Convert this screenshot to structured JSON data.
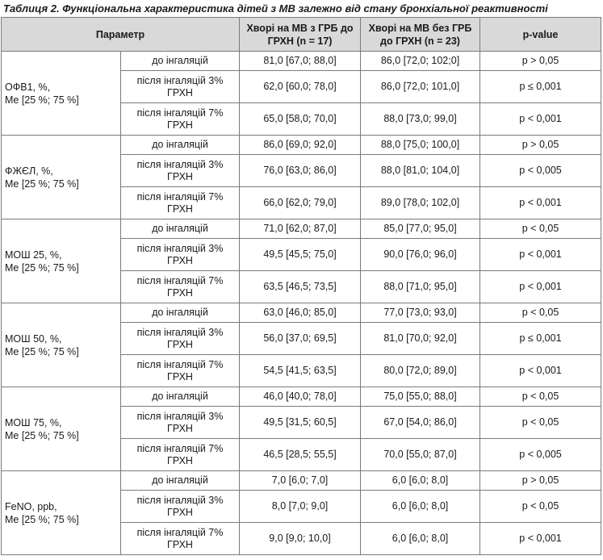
{
  "caption": "Таблиця 2. Функціональна характеристика дітей з МВ залежно від стану бронхіальної реактивності",
  "header": {
    "param": "Параметр",
    "col1": "Хворі на МВ з ГРБ до ГРХН (n = 17)",
    "col2": "Хворі на МВ без ГРБ до ГРХН (n = 23)",
    "pvalue": "p-value"
  },
  "groups": [
    {
      "name": "ОФВ1, %,",
      "sub": "Me [25 %; 75 %]",
      "rows": [
        {
          "cond": "до інгаляцій",
          "v1": "81,0 [67,0; 88,0]",
          "v2": "86,0 [72,0; 102;0]",
          "p": "p > 0,05"
        },
        {
          "cond": "після інгаляцій 3% ГРХН",
          "v1": "62,0 [60,0; 78,0]",
          "v2": "86,0 [72,0; 101,0]",
          "p": "p ≤ 0,001"
        },
        {
          "cond": "після інгаляцій 7% ГРХН",
          "v1": "65,0 [58,0; 70,0]",
          "v2": "88,0 [73,0; 99,0]",
          "p": "p < 0,001"
        }
      ]
    },
    {
      "name": "ФЖЄЛ, %,",
      "sub": "Me [25 %; 75 %]",
      "rows": [
        {
          "cond": "до інгаляцій",
          "v1": "86,0 [69,0; 92,0]",
          "v2": "88,0 [75,0; 100,0]",
          "p": "p > 0,05"
        },
        {
          "cond": "після інгаляцій 3% ГРХН",
          "v1": "76,0 [63,0; 86,0]",
          "v2": "88,0 [81,0; 104,0]",
          "p": "p < 0,005"
        },
        {
          "cond": "після інгаляцій 7% ГРХН",
          "v1": "66,0 [62,0; 79,0]",
          "v2": "89,0 [78,0; 102,0]",
          "p": "p < 0,001"
        }
      ]
    },
    {
      "name": "МОШ 25, %,",
      "sub": "Me [25 %; 75 %]",
      "rows": [
        {
          "cond": "до інгаляцій",
          "v1": "71,0 [62,0; 87,0]",
          "v2": "85,0 [77,0; 95,0]",
          "p": "p < 0,05"
        },
        {
          "cond": "після інгаляцій 3% ГРХН",
          "v1": "49,5 [45,5; 75,0]",
          "v2": "90,0 [76,0; 96,0]",
          "p": "p < 0,001"
        },
        {
          "cond": "після інгаляцій 7% ГРХН",
          "v1": "63,5 [46,5; 73,5]",
          "v2": "88,0 [71,0; 95,0]",
          "p": "p < 0,001"
        }
      ]
    },
    {
      "name": "МОШ 50, %,",
      "sub": "Me [25 %; 75 %]",
      "rows": [
        {
          "cond": "до інгаляцій",
          "v1": "63,0 [46,0; 85,0]",
          "v2": "77,0 [73,0; 93,0]",
          "p": "p < 0,05"
        },
        {
          "cond": "після інгаляцій 3% ГРХН",
          "v1": "56,0 [37,0; 69,5]",
          "v2": "81,0 [70,0; 92,0]",
          "p": "p ≤ 0,001"
        },
        {
          "cond": "після інгаляцій 7% ГРХН",
          "v1": "54,5 [41,5; 63,5]",
          "v2": "80,0 [72,0; 89,0]",
          "p": "p < 0,001"
        }
      ]
    },
    {
      "name": "МОШ 75, %,",
      "sub": "Me [25 %; 75 %]",
      "rows": [
        {
          "cond": "до інгаляцій",
          "v1": "46,0 [40,0; 78,0]",
          "v2": "75,0 [55,0; 88,0]",
          "p": "p < 0,05"
        },
        {
          "cond": "після інгаляцій 3% ГРХН",
          "v1": "49,5 [31,5; 60,5]",
          "v2": "67,0 [54,0; 86,0]",
          "p": "p < 0,05"
        },
        {
          "cond": "після інгаляцій 7% ГРХН",
          "v1": "46,5 [28,5; 55,5]",
          "v2": "70,0 [55,0; 87,0]",
          "p": "p < 0,005"
        }
      ]
    },
    {
      "name": "FeNO, ppb,",
      "sub": "Me [25 %; 75 %]",
      "rows": [
        {
          "cond": "до інгаляцій",
          "v1": "7,0 [6,0; 7,0]",
          "v2": "6,0 [6,0; 8,0]",
          "p": "p > 0,05"
        },
        {
          "cond": "після інгаляцій 3% ГРХН",
          "v1": "8,0 [7,0; 9,0]",
          "v2": "6,0 [6,0; 8,0]",
          "p": "p < 0,05"
        },
        {
          "cond": "після інгаляцій 7% ГРХН",
          "v1": "9,0 [9,0; 10,0]",
          "v2": "6,0 [6,0; 8,0]",
          "p": "p < 0,001"
        }
      ]
    }
  ],
  "colors": {
    "header_bg": "#d9d9d9",
    "border": "#7a7a7a",
    "text": "#1a1a1a"
  }
}
